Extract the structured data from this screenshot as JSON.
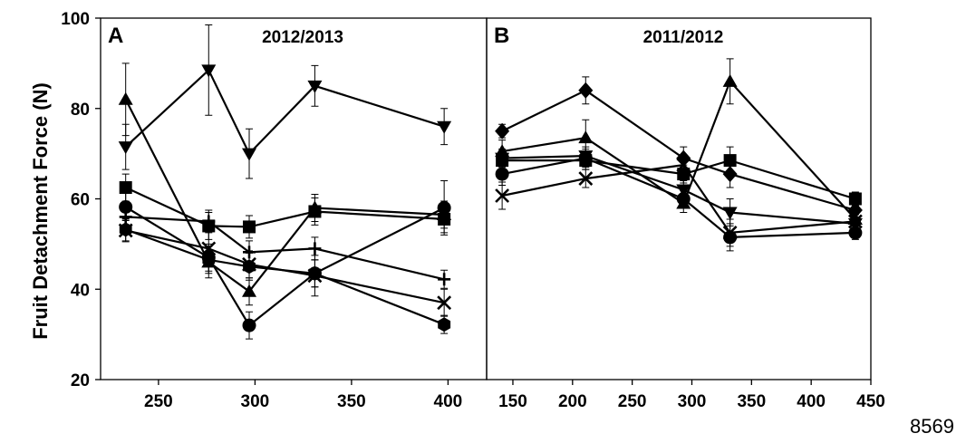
{
  "figure": {
    "ylabel": "Fruit Detachment Force (N)",
    "page_number": "8569"
  },
  "chart_data": [
    {
      "type": "line",
      "panel_letter": "A",
      "title": "2012/2013",
      "xlim": [
        220,
        420
      ],
      "ylim": [
        20,
        100
      ],
      "xticks": [
        250,
        300,
        350,
        400
      ],
      "yticks": [
        20,
        40,
        60,
        80,
        100
      ],
      "grid": false,
      "legend": "none",
      "series": [
        {
          "marker": "triangle-down",
          "x": [
            233,
            276,
            297,
            331,
            398
          ],
          "y": [
            71.5,
            88.5,
            70,
            85,
            76
          ],
          "err": [
            5,
            10,
            5.5,
            4.5,
            4
          ]
        },
        {
          "marker": "triangle-up",
          "x": [
            233,
            276,
            297,
            331,
            398
          ],
          "y": [
            82,
            46,
            39.5,
            58,
            56.5
          ],
          "err": [
            8,
            3.5,
            3,
            3,
            3
          ]
        },
        {
          "marker": "square",
          "x": [
            233,
            276,
            297,
            331,
            398
          ],
          "y": [
            62.5,
            54,
            53.8,
            57.2,
            55.5
          ],
          "err": [
            3,
            3,
            2.5,
            3,
            3
          ]
        },
        {
          "marker": "circle",
          "x": [
            233,
            276,
            297,
            331,
            398
          ],
          "y": [
            58.2,
            47,
            32,
            43.5,
            58
          ],
          "err": [
            3,
            3,
            3,
            3,
            6
          ]
        },
        {
          "marker": "plus",
          "x": [
            233,
            276,
            297,
            331,
            398
          ],
          "y": [
            56,
            55,
            48.2,
            49,
            42.2
          ],
          "err": [
            2.5,
            2.5,
            2.5,
            2.5,
            2
          ]
        },
        {
          "marker": "x",
          "x": [
            233,
            276,
            297,
            331,
            398
          ],
          "y": [
            53,
            49,
            45.5,
            43,
            37
          ],
          "err": [
            2.5,
            4,
            3,
            4.5,
            3
          ]
        },
        {
          "marker": "hexagon",
          "x": [
            233,
            276,
            297,
            331,
            398
          ],
          "y": [
            53.2,
            46.5,
            45,
            43.5,
            32.2
          ],
          "err": [
            2.5,
            3,
            3,
            3,
            2
          ]
        }
      ]
    },
    {
      "type": "line",
      "panel_letter": "B",
      "title": "2011/2012",
      "xlim": [
        128,
        450
      ],
      "ylim": [
        20,
        100
      ],
      "xticks": [
        150,
        200,
        250,
        300,
        350,
        400,
        450
      ],
      "grid": false,
      "legend": "none",
      "series": [
        {
          "marker": "diamond",
          "x": [
            141,
            211,
            293,
            332,
            437
          ],
          "y": [
            75,
            84,
            69,
            65.5,
            57.5
          ],
          "err": [
            1.5,
            3,
            2.5,
            3,
            1.5
          ]
        },
        {
          "marker": "triangle-up",
          "x": [
            141,
            211,
            293,
            332,
            437
          ],
          "y": [
            70.5,
            73.5,
            59,
            86,
            55.5
          ],
          "err": [
            2.5,
            4,
            2,
            5,
            1.5
          ]
        },
        {
          "marker": "triangle-down",
          "x": [
            141,
            211,
            293,
            332,
            437
          ],
          "y": [
            69,
            69.5,
            62,
            57,
            54.5
          ],
          "err": [
            2,
            2,
            2,
            3,
            1.5
          ]
        },
        {
          "marker": "square",
          "x": [
            141,
            211,
            293,
            332,
            437
          ],
          "y": [
            68.5,
            68.5,
            65.5,
            68.5,
            60
          ],
          "err": [
            2,
            2,
            2,
            3,
            1.5
          ]
        },
        {
          "marker": "circle",
          "x": [
            141,
            211,
            293,
            332,
            437
          ],
          "y": [
            65.5,
            69,
            60,
            51.5,
            52.5
          ],
          "err": [
            2.5,
            2,
            2,
            3,
            1.5
          ]
        },
        {
          "marker": "x",
          "x": [
            141,
            211,
            293,
            332,
            437
          ],
          "y": [
            60.7,
            64.5,
            67.5,
            52.5,
            55
          ],
          "err": [
            3,
            2,
            2,
            3,
            1.5
          ]
        }
      ]
    }
  ]
}
